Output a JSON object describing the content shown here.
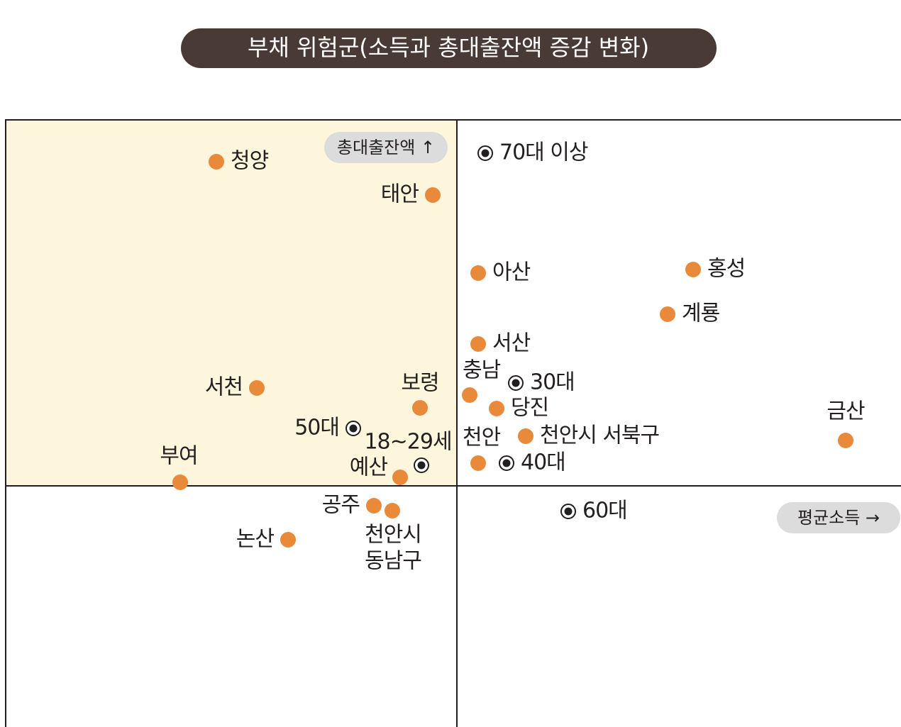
{
  "header": {
    "title": "부채 위험군(소득과 총대출잔액 증감 변화)"
  },
  "axes": {
    "y_label": "총대출잔액 ↑",
    "x_label": "평균소득 →"
  },
  "points": [
    {
      "label": "청양",
      "kind": "region"
    },
    {
      "label": "태안",
      "kind": "region"
    },
    {
      "label": "70대 이상",
      "kind": "age"
    },
    {
      "label": "아산",
      "kind": "region"
    },
    {
      "label": "홍성",
      "kind": "region"
    },
    {
      "label": "계룡",
      "kind": "region"
    },
    {
      "label": "서산",
      "kind": "region"
    },
    {
      "label": "충남",
      "kind": "region"
    },
    {
      "label": "30대",
      "kind": "age"
    },
    {
      "label": "당진",
      "kind": "region"
    },
    {
      "label": "서천",
      "kind": "region"
    },
    {
      "label": "보령",
      "kind": "region"
    },
    {
      "label": "금산",
      "kind": "region"
    },
    {
      "label": "50대",
      "kind": "age"
    },
    {
      "label": "18~29세",
      "kind": "age"
    },
    {
      "label": "천안",
      "kind": "region"
    },
    {
      "label": "천안시 서북구",
      "kind": "region"
    },
    {
      "label": "40대",
      "kind": "age"
    },
    {
      "label": "예산",
      "kind": "region"
    },
    {
      "label": "부여",
      "kind": "region"
    },
    {
      "label": "공주",
      "kind": "region"
    },
    {
      "label_lines": [
        "천안시",
        "동남구"
      ],
      "kind": "region"
    },
    {
      "label": "논산",
      "kind": "region"
    },
    {
      "label": "60대",
      "kind": "age"
    }
  ]
}
